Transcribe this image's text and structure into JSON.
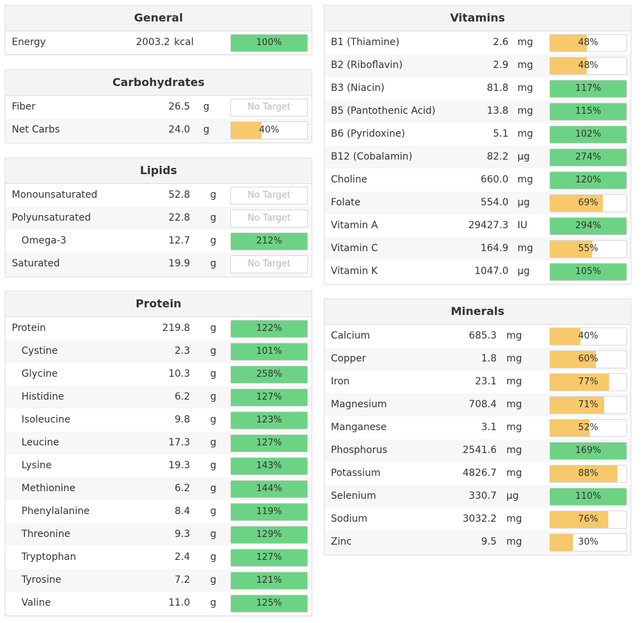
{
  "colors": {
    "green": "#6cd384",
    "yellow": "#f7c96b"
  },
  "general": {
    "title": "General",
    "rows": [
      {
        "name": "Energy",
        "amount": "2003.2",
        "unit": "kcal",
        "pct": "100%",
        "fill": 100,
        "color": "green"
      }
    ]
  },
  "carbohydrates": {
    "title": "Carbohydrates",
    "rows": [
      {
        "name": "Fiber",
        "amount": "26.5",
        "unit": "g",
        "pct": "No Target",
        "fill": 0,
        "color": "none"
      },
      {
        "name": "Net Carbs",
        "amount": "24.0",
        "unit": "g",
        "pct": "40%",
        "fill": 40,
        "color": "yellow"
      }
    ]
  },
  "lipids": {
    "title": "Lipids",
    "rows": [
      {
        "name": "Monounsaturated",
        "amount": "52.8",
        "unit": "g",
        "pct": "No Target",
        "fill": 0,
        "color": "none"
      },
      {
        "name": "Polyunsaturated",
        "amount": "22.8",
        "unit": "g",
        "pct": "No Target",
        "fill": 0,
        "color": "none"
      },
      {
        "name": "Omega-3",
        "amount": "12.7",
        "unit": "g",
        "pct": "212%",
        "fill": 100,
        "color": "green"
      },
      {
        "name": "Saturated",
        "amount": "19.9",
        "unit": "g",
        "pct": "No Target",
        "fill": 0,
        "color": "none"
      }
    ]
  },
  "protein": {
    "title": "Protein",
    "rows": [
      {
        "name": "Protein",
        "amount": "219.8",
        "unit": "g",
        "pct": "122%",
        "fill": 100,
        "color": "green"
      },
      {
        "name": "Cystine",
        "amount": "2.3",
        "unit": "g",
        "pct": "101%",
        "fill": 100,
        "color": "green"
      },
      {
        "name": "Glycine",
        "amount": "10.3",
        "unit": "g",
        "pct": "258%",
        "fill": 100,
        "color": "green"
      },
      {
        "name": "Histidine",
        "amount": "6.2",
        "unit": "g",
        "pct": "127%",
        "fill": 100,
        "color": "green"
      },
      {
        "name": "Isoleucine",
        "amount": "9.8",
        "unit": "g",
        "pct": "123%",
        "fill": 100,
        "color": "green"
      },
      {
        "name": "Leucine",
        "amount": "17.3",
        "unit": "g",
        "pct": "127%",
        "fill": 100,
        "color": "green"
      },
      {
        "name": "Lysine",
        "amount": "19.3",
        "unit": "g",
        "pct": "143%",
        "fill": 100,
        "color": "green"
      },
      {
        "name": "Methionine",
        "amount": "6.2",
        "unit": "g",
        "pct": "144%",
        "fill": 100,
        "color": "green"
      },
      {
        "name": "Phenylalanine",
        "amount": "8.4",
        "unit": "g",
        "pct": "119%",
        "fill": 100,
        "color": "green"
      },
      {
        "name": "Threonine",
        "amount": "9.3",
        "unit": "g",
        "pct": "129%",
        "fill": 100,
        "color": "green"
      },
      {
        "name": "Tryptophan",
        "amount": "2.4",
        "unit": "g",
        "pct": "127%",
        "fill": 100,
        "color": "green"
      },
      {
        "name": "Tyrosine",
        "amount": "7.2",
        "unit": "g",
        "pct": "121%",
        "fill": 100,
        "color": "green"
      },
      {
        "name": "Valine",
        "amount": "11.0",
        "unit": "g",
        "pct": "125%",
        "fill": 100,
        "color": "green"
      }
    ]
  },
  "vitamins": {
    "title": "Vitamins",
    "rows": [
      {
        "name": "B1 (Thiamine)",
        "amount": "2.6",
        "unit": "mg",
        "pct": "48%",
        "fill": 48,
        "color": "yellow"
      },
      {
        "name": "B2 (Riboflavin)",
        "amount": "2.9",
        "unit": "mg",
        "pct": "48%",
        "fill": 48,
        "color": "yellow"
      },
      {
        "name": "B3 (Niacin)",
        "amount": "81.8",
        "unit": "mg",
        "pct": "117%",
        "fill": 100,
        "color": "green"
      },
      {
        "name": "B5 (Pantothenic Acid)",
        "amount": "13.8",
        "unit": "mg",
        "pct": "115%",
        "fill": 100,
        "color": "green"
      },
      {
        "name": "B6 (Pyridoxine)",
        "amount": "5.1",
        "unit": "mg",
        "pct": "102%",
        "fill": 100,
        "color": "green"
      },
      {
        "name": "B12 (Cobalamin)",
        "amount": "82.2",
        "unit": "µg",
        "pct": "274%",
        "fill": 100,
        "color": "green"
      },
      {
        "name": "Choline",
        "amount": "660.0",
        "unit": "mg",
        "pct": "120%",
        "fill": 100,
        "color": "green"
      },
      {
        "name": "Folate",
        "amount": "554.0",
        "unit": "µg",
        "pct": "69%",
        "fill": 69,
        "color": "yellow"
      },
      {
        "name": "Vitamin A",
        "amount": "29427.3",
        "unit": "IU",
        "pct": "294%",
        "fill": 100,
        "color": "green"
      },
      {
        "name": "Vitamin C",
        "amount": "164.9",
        "unit": "mg",
        "pct": "55%",
        "fill": 55,
        "color": "yellow"
      },
      {
        "name": "Vitamin K",
        "amount": "1047.0",
        "unit": "µg",
        "pct": "105%",
        "fill": 100,
        "color": "green"
      }
    ]
  },
  "minerals": {
    "title": "Minerals",
    "rows": [
      {
        "name": "Calcium",
        "amount": "685.3",
        "unit": "mg",
        "pct": "40%",
        "fill": 40,
        "color": "yellow"
      },
      {
        "name": "Copper",
        "amount": "1.8",
        "unit": "mg",
        "pct": "60%",
        "fill": 60,
        "color": "yellow"
      },
      {
        "name": "Iron",
        "amount": "23.1",
        "unit": "mg",
        "pct": "77%",
        "fill": 77,
        "color": "yellow"
      },
      {
        "name": "Magnesium",
        "amount": "708.4",
        "unit": "mg",
        "pct": "71%",
        "fill": 71,
        "color": "yellow"
      },
      {
        "name": "Manganese",
        "amount": "3.1",
        "unit": "mg",
        "pct": "52%",
        "fill": 52,
        "color": "yellow"
      },
      {
        "name": "Phosphorus",
        "amount": "2541.6",
        "unit": "mg",
        "pct": "169%",
        "fill": 100,
        "color": "green"
      },
      {
        "name": "Potassium",
        "amount": "4826.7",
        "unit": "mg",
        "pct": "88%",
        "fill": 88,
        "color": "yellow"
      },
      {
        "name": "Selenium",
        "amount": "330.7",
        "unit": "µg",
        "pct": "110%",
        "fill": 100,
        "color": "green"
      },
      {
        "name": "Sodium",
        "amount": "3032.2",
        "unit": "mg",
        "pct": "76%",
        "fill": 76,
        "color": "yellow"
      },
      {
        "name": "Zinc",
        "amount": "9.5",
        "unit": "mg",
        "pct": "30%",
        "fill": 30,
        "color": "yellow"
      }
    ]
  }
}
